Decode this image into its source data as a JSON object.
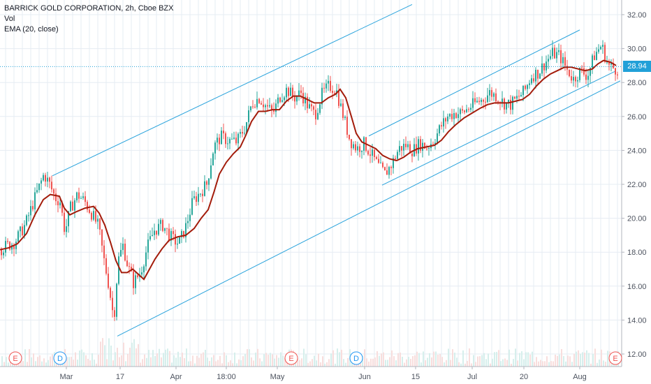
{
  "legend": {
    "symbol": "BARRICK GOLD CORPORATION, 2h, Cboe BZX",
    "volume": "Vol",
    "indicator": "EMA (20, close)"
  },
  "colors": {
    "up": "#26a69a",
    "down": "#ef5350",
    "ema": "#a31c0b",
    "channel": "#29a3dc",
    "price_line": "#21a0d8",
    "grid": "#e6ecf3",
    "axis_text": "#4c525e"
  },
  "last_price_label": "28.94",
  "chart_data": {
    "type": "candlestick",
    "title": "BARRICK GOLD CORPORATION, 2h, Cboe BZX",
    "ylim": [
      11.5,
      32.8
    ],
    "y_ticks": [
      12,
      14,
      16,
      18,
      20,
      22,
      24,
      26,
      28,
      30,
      32
    ],
    "y_tick_labels": [
      "12.00",
      "14.00",
      "16.00",
      "18.00",
      "20.00",
      "22.00",
      "24.00",
      "26.00",
      "28.00",
      "30.00",
      "32.00"
    ],
    "x_ticks": [
      {
        "label": "Mar",
        "x": 95
      },
      {
        "label": "17",
        "x": 172
      },
      {
        "label": "Apr",
        "x": 252
      },
      {
        "label": "18:00",
        "x": 324
      },
      {
        "label": "May",
        "x": 397
      },
      {
        "label": "Jun",
        "x": 522
      },
      {
        "label": "15",
        "x": 595
      },
      {
        "label": "Jul",
        "x": 676
      },
      {
        "label": "20",
        "x": 750
      },
      {
        "label": "Aug",
        "x": 830
      }
    ],
    "last_price": 28.94,
    "close_path": [
      [
        0,
        18.2
      ],
      [
        20,
        18.6
      ],
      [
        35,
        19.6
      ],
      [
        50,
        21.3
      ],
      [
        62,
        22.6
      ],
      [
        70,
        22.0
      ],
      [
        78,
        21.2
      ],
      [
        85,
        21.0
      ],
      [
        92,
        19.2
      ],
      [
        100,
        20.6
      ],
      [
        110,
        21.4
      ],
      [
        120,
        21.0
      ],
      [
        130,
        20.3
      ],
      [
        140,
        19.5
      ],
      [
        148,
        17.5
      ],
      [
        155,
        16.0
      ],
      [
        162,
        14.0
      ],
      [
        168,
        17.5
      ],
      [
        175,
        18.4
      ],
      [
        182,
        17.2
      ],
      [
        190,
        16.2
      ],
      [
        200,
        16.8
      ],
      [
        210,
        18.3
      ],
      [
        220,
        19.3
      ],
      [
        232,
        19.6
      ],
      [
        245,
        18.8
      ],
      [
        255,
        18.5
      ],
      [
        265,
        19.5
      ],
      [
        275,
        21.0
      ],
      [
        285,
        21.5
      ],
      [
        295,
        22.0
      ],
      [
        305,
        24.2
      ],
      [
        315,
        24.8
      ],
      [
        325,
        24.6
      ],
      [
        338,
        24.5
      ],
      [
        350,
        25.4
      ],
      [
        360,
        26.8
      ],
      [
        370,
        27.1
      ],
      [
        380,
        26.6
      ],
      [
        390,
        26.2
      ],
      [
        400,
        27.2
      ],
      [
        410,
        27.6
      ],
      [
        420,
        27.1
      ],
      [
        430,
        27.4
      ],
      [
        440,
        26.6
      ],
      [
        450,
        26.1
      ],
      [
        460,
        27.3
      ],
      [
        470,
        27.8
      ],
      [
        480,
        27.6
      ],
      [
        490,
        26.1
      ],
      [
        500,
        24.6
      ],
      [
        510,
        24.1
      ],
      [
        520,
        24.4
      ],
      [
        530,
        23.8
      ],
      [
        540,
        23.1
      ],
      [
        550,
        22.6
      ],
      [
        560,
        23.2
      ],
      [
        570,
        24.1
      ],
      [
        580,
        24.3
      ],
      [
        590,
        24.0
      ],
      [
        600,
        24.4
      ],
      [
        610,
        24.2
      ],
      [
        620,
        24.6
      ],
      [
        630,
        25.4
      ],
      [
        640,
        26.0
      ],
      [
        650,
        26.2
      ],
      [
        660,
        26.2
      ],
      [
        670,
        26.5
      ],
      [
        680,
        26.8
      ],
      [
        690,
        27.0
      ],
      [
        700,
        27.4
      ],
      [
        710,
        27.2
      ],
      [
        720,
        26.8
      ],
      [
        730,
        26.7
      ],
      [
        740,
        27.1
      ],
      [
        750,
        27.5
      ],
      [
        760,
        28.4
      ],
      [
        770,
        28.6
      ],
      [
        780,
        29.2
      ],
      [
        790,
        29.7
      ],
      [
        800,
        29.6
      ],
      [
        810,
        28.8
      ],
      [
        820,
        28.2
      ],
      [
        830,
        28.7
      ],
      [
        840,
        28.4
      ],
      [
        850,
        29.6
      ],
      [
        860,
        30.2
      ],
      [
        870,
        29.0
      ],
      [
        880,
        28.8
      ]
    ],
    "ema_20": [
      [
        0,
        18.15
      ],
      [
        12,
        18.25
      ],
      [
        25,
        18.5
      ],
      [
        38,
        19.1
      ],
      [
        50,
        20.2
      ],
      [
        62,
        21.1
      ],
      [
        72,
        21.4
      ],
      [
        85,
        21.3
      ],
      [
        92,
        20.6
      ],
      [
        100,
        20.2
      ],
      [
        110,
        20.4
      ],
      [
        122,
        20.6
      ],
      [
        134,
        20.7
      ],
      [
        142,
        20.3
      ],
      [
        150,
        19.6
      ],
      [
        158,
        18.6
      ],
      [
        166,
        17.5
      ],
      [
        174,
        16.8
      ],
      [
        182,
        16.8
      ],
      [
        190,
        17.0
      ],
      [
        198,
        16.7
      ],
      [
        206,
        16.4
      ],
      [
        214,
        17.0
      ],
      [
        222,
        17.6
      ],
      [
        232,
        18.2
      ],
      [
        242,
        18.7
      ],
      [
        254,
        18.9
      ],
      [
        266,
        19.0
      ],
      [
        278,
        19.4
      ],
      [
        288,
        20.0
      ],
      [
        298,
        20.5
      ],
      [
        306,
        21.5
      ],
      [
        314,
        22.6
      ],
      [
        324,
        23.3
      ],
      [
        334,
        23.8
      ],
      [
        344,
        24.2
      ],
      [
        352,
        24.9
      ],
      [
        360,
        25.7
      ],
      [
        370,
        26.3
      ],
      [
        380,
        26.3
      ],
      [
        390,
        26.4
      ],
      [
        400,
        26.4
      ],
      [
        410,
        26.9
      ],
      [
        420,
        27.2
      ],
      [
        430,
        27.2
      ],
      [
        440,
        27.0
      ],
      [
        450,
        26.8
      ],
      [
        460,
        26.8
      ],
      [
        470,
        27.1
      ],
      [
        480,
        27.3
      ],
      [
        487,
        27.6
      ],
      [
        495,
        27.1
      ],
      [
        503,
        26.0
      ],
      [
        510,
        25.0
      ],
      [
        518,
        24.5
      ],
      [
        528,
        24.3
      ],
      [
        538,
        24.1
      ],
      [
        548,
        23.7
      ],
      [
        558,
        23.5
      ],
      [
        568,
        23.4
      ],
      [
        578,
        23.6
      ],
      [
        588,
        23.9
      ],
      [
        598,
        24.1
      ],
      [
        610,
        24.2
      ],
      [
        622,
        24.3
      ],
      [
        632,
        24.6
      ],
      [
        642,
        25.1
      ],
      [
        652,
        25.5
      ],
      [
        664,
        25.9
      ],
      [
        676,
        26.2
      ],
      [
        688,
        26.5
      ],
      [
        698,
        26.7
      ],
      [
        708,
        26.8
      ],
      [
        718,
        26.8
      ],
      [
        728,
        26.8
      ],
      [
        738,
        26.9
      ],
      [
        748,
        27.0
      ],
      [
        758,
        27.3
      ],
      [
        768,
        27.8
      ],
      [
        778,
        28.2
      ],
      [
        788,
        28.5
      ],
      [
        798,
        28.7
      ],
      [
        808,
        28.9
      ],
      [
        818,
        28.9
      ],
      [
        828,
        28.8
      ],
      [
        838,
        28.7
      ],
      [
        848,
        28.8
      ],
      [
        856,
        29.1
      ],
      [
        864,
        29.3
      ],
      [
        874,
        29.2
      ],
      [
        882,
        29.0
      ]
    ],
    "channels": [
      {
        "name": "upper-left",
        "from": [
          75,
          22.5
        ],
        "to": [
          590,
          32.6
        ]
      },
      {
        "name": "lower-main",
        "from": [
          168,
          13.05
        ],
        "to": [
          888,
          28.1
        ]
      },
      {
        "name": "right-upper",
        "from": [
          528,
          24.85
        ],
        "to": [
          830,
          31.1
        ]
      },
      {
        "name": "right-lower",
        "from": [
          547,
          21.95
        ],
        "to": [
          880,
          28.65
        ]
      }
    ],
    "price_line_dotted": 28.94,
    "events": [
      {
        "label": "E",
        "x": 22,
        "kind": "earnings"
      },
      {
        "label": "D",
        "x": 86,
        "kind": "dividend"
      },
      {
        "label": "E",
        "x": 417,
        "kind": "earnings"
      },
      {
        "label": "D",
        "x": 510,
        "kind": "dividend"
      },
      {
        "label": "E",
        "x": 881,
        "kind": "earnings"
      }
    ]
  }
}
